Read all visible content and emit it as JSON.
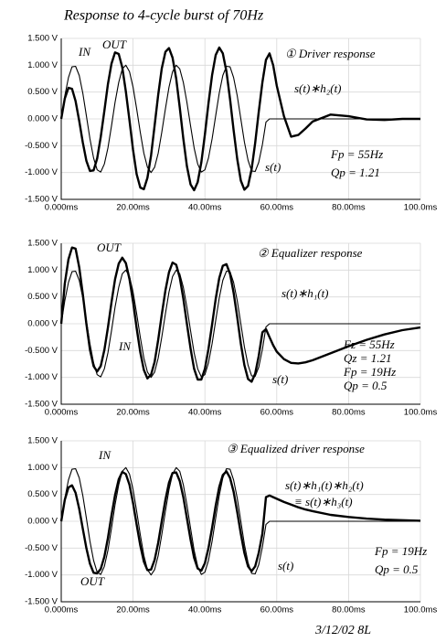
{
  "page_title": "Response to 4-cycle burst of 70Hz",
  "signature": "3/12/02 8L",
  "chart_data": [
    {
      "type": "line",
      "x": [
        0,
        1,
        2,
        3,
        4,
        5,
        6,
        7,
        8,
        9,
        10,
        11,
        12,
        13,
        14,
        15,
        16,
        17,
        18,
        19,
        20,
        21,
        22,
        23,
        24,
        25,
        26,
        27,
        28,
        29,
        30,
        31,
        32,
        33,
        34,
        35,
        36,
        37,
        38,
        39,
        40,
        41,
        42,
        43,
        44,
        45,
        46,
        47,
        48,
        49,
        50,
        51,
        52,
        53,
        54,
        55,
        56,
        57,
        58,
        59,
        60,
        62,
        64,
        66,
        68,
        70,
        75,
        80,
        85,
        90,
        95,
        100
      ],
      "series": [
        {
          "name": "IN",
          "color": "#000000",
          "values": [
            0,
            0.43,
            0.77,
            0.97,
            0.98,
            0.81,
            0.48,
            0.06,
            -0.37,
            -0.73,
            -0.95,
            -0.99,
            -0.84,
            -0.54,
            -0.13,
            0.31,
            0.68,
            0.93,
            1,
            0.88,
            0.59,
            0.19,
            -0.25,
            -0.64,
            -0.9,
            -1,
            -0.9,
            -0.64,
            -0.25,
            0.19,
            0.59,
            0.88,
            1,
            0.93,
            0.68,
            0.31,
            -0.13,
            -0.54,
            -0.84,
            -0.99,
            -0.95,
            -0.73,
            -0.37,
            0.06,
            0.48,
            0.81,
            0.98,
            0.97,
            0.77,
            0.43,
            0,
            -0.43,
            -0.77,
            -0.97,
            -0.98,
            -0.81,
            -0.48,
            -0.06,
            0,
            0,
            0,
            0,
            0,
            0,
            0,
            0,
            0,
            0,
            0,
            0,
            0,
            0
          ]
        },
        {
          "name": "OUT",
          "color": "#000000",
          "values": [
            0,
            0.38,
            0.58,
            0.56,
            0.33,
            -0.04,
            -0.44,
            -0.78,
            -0.97,
            -0.96,
            -0.74,
            -0.34,
            0.15,
            0.65,
            1.03,
            1.24,
            1.21,
            0.96,
            0.51,
            -0.03,
            -0.58,
            -1.03,
            -1.28,
            -1.31,
            -1.1,
            -0.68,
            -0.12,
            0.45,
            0.94,
            1.25,
            1.32,
            1.14,
            0.75,
            0.21,
            -0.37,
            -0.88,
            -1.22,
            -1.33,
            -1.18,
            -0.81,
            -0.29,
            0.29,
            0.82,
            1.19,
            1.33,
            1.22,
            0.88,
            0.37,
            -0.21,
            -0.75,
            -1.15,
            -1.32,
            -1.25,
            -0.94,
            -0.45,
            0.13,
            0.68,
            1.1,
            1.22,
            1.0,
            0.62,
            0.05,
            -0.33,
            -0.3,
            -0.18,
            -0.05,
            0.08,
            0.05,
            -0.01,
            -0.02,
            0,
            0
          ]
        }
      ],
      "annotations": [
        "① Driver response",
        "s(t)∗h₂(t)",
        "s(t)",
        "Fp = 55Hz",
        "Qp = 1.21"
      ],
      "xlim": [
        0,
        100
      ],
      "xticks": [
        {
          "value": 0,
          "label": "0.000ms"
        },
        {
          "value": 20,
          "label": "20.00ms"
        },
        {
          "value": 40,
          "label": "40.00ms"
        },
        {
          "value": 60,
          "label": "60.00ms"
        },
        {
          "value": 80,
          "label": "80.00ms"
        },
        {
          "value": 100,
          "label": "100.0ms"
        }
      ],
      "ylim": [
        -1.5,
        1.5
      ],
      "yticks": [
        {
          "value": 1.5,
          "label": "1.500 V"
        },
        {
          "value": 1,
          "label": "1.000 V"
        },
        {
          "value": 0.5,
          "label": "0.500 V"
        },
        {
          "value": 0,
          "label": "0.000 V"
        },
        {
          "value": -0.5,
          "label": "-0.500 V"
        },
        {
          "value": -1,
          "label": "-1.000 V"
        },
        {
          "value": -1.5,
          "label": "-1.500 V"
        }
      ],
      "grid": true
    },
    {
      "type": "line",
      "x": [
        0,
        1,
        2,
        3,
        4,
        5,
        6,
        7,
        8,
        9,
        10,
        11,
        12,
        13,
        14,
        15,
        16,
        17,
        18,
        19,
        20,
        21,
        22,
        23,
        24,
        25,
        26,
        27,
        28,
        29,
        30,
        31,
        32,
        33,
        34,
        35,
        36,
        37,
        38,
        39,
        40,
        41,
        42,
        43,
        44,
        45,
        46,
        47,
        48,
        49,
        50,
        51,
        52,
        53,
        54,
        55,
        56,
        57,
        58,
        59,
        60,
        62,
        64,
        66,
        68,
        70,
        75,
        80,
        85,
        90,
        95,
        100
      ],
      "series": [
        {
          "name": "IN",
          "color": "#000000",
          "values": [
            0,
            0.43,
            0.77,
            0.97,
            0.98,
            0.81,
            0.48,
            0.06,
            -0.37,
            -0.73,
            -0.95,
            -0.99,
            -0.84,
            -0.54,
            -0.13,
            0.31,
            0.68,
            0.93,
            1,
            0.88,
            0.59,
            0.19,
            -0.25,
            -0.64,
            -0.9,
            -1,
            -0.9,
            -0.64,
            -0.25,
            0.19,
            0.59,
            0.88,
            1,
            0.93,
            0.68,
            0.31,
            -0.13,
            -0.54,
            -0.84,
            -0.99,
            -0.95,
            -0.73,
            -0.37,
            0.06,
            0.48,
            0.81,
            0.98,
            0.97,
            0.77,
            0.43,
            0,
            -0.43,
            -0.77,
            -0.97,
            -0.98,
            -0.81,
            -0.48,
            -0.06,
            0,
            0,
            0,
            0,
            0,
            0,
            0,
            0,
            0,
            0,
            0,
            0,
            0,
            0
          ]
        },
        {
          "name": "OUT",
          "color": "#000000",
          "values": [
            0,
            0.75,
            1.2,
            1.42,
            1.4,
            1.05,
            0.55,
            0,
            -0.48,
            -0.79,
            -0.89,
            -0.79,
            -0.49,
            -0.07,
            0.4,
            0.83,
            1.12,
            1.23,
            1.13,
            0.83,
            0.41,
            -0.08,
            -0.53,
            -0.86,
            -1.02,
            -0.95,
            -0.71,
            -0.3,
            0.17,
            0.62,
            0.96,
            1.14,
            1.1,
            0.86,
            0.47,
            0,
            -0.46,
            -0.84,
            -1.04,
            -1.04,
            -0.84,
            -0.47,
            -0.01,
            0.46,
            0.85,
            1.08,
            1.11,
            0.93,
            0.58,
            0.12,
            -0.37,
            -0.77,
            -1.03,
            -1.08,
            -0.93,
            -0.6,
            -0.16,
            -0.1,
            -0.25,
            -0.4,
            -0.52,
            -0.66,
            -0.73,
            -0.74,
            -0.72,
            -0.68,
            -0.55,
            -0.42,
            -0.3,
            -0.2,
            -0.12,
            -0.07
          ]
        }
      ],
      "annotations": [
        "② Equalizer response",
        "s(t)∗h₁(t)",
        "s(t)",
        "Fz = 55Hz",
        "Qz = 1.21",
        "Fp = 19Hz",
        "Qp = 0.5"
      ],
      "xlim": [
        0,
        100
      ],
      "xticks": [
        {
          "value": 0,
          "label": "0.000ms"
        },
        {
          "value": 20,
          "label": "20.00ms"
        },
        {
          "value": 40,
          "label": "40.00ms"
        },
        {
          "value": 60,
          "label": "60.00ms"
        },
        {
          "value": 80,
          "label": "80.00ms"
        },
        {
          "value": 100,
          "label": "100.0ms"
        }
      ],
      "ylim": [
        -1.5,
        1.5
      ],
      "yticks": [
        {
          "value": 1.5,
          "label": "1.500 V"
        },
        {
          "value": 1,
          "label": "1.000 V"
        },
        {
          "value": 0.5,
          "label": "0.500 V"
        },
        {
          "value": 0,
          "label": "0.000 V"
        },
        {
          "value": -0.5,
          "label": "-0.500 V"
        },
        {
          "value": -1,
          "label": "-1.000 V"
        },
        {
          "value": -1.5,
          "label": "-1.500 V"
        }
      ],
      "grid": true
    },
    {
      "type": "line",
      "x": [
        0,
        1,
        2,
        3,
        4,
        5,
        6,
        7,
        8,
        9,
        10,
        11,
        12,
        13,
        14,
        15,
        16,
        17,
        18,
        19,
        20,
        21,
        22,
        23,
        24,
        25,
        26,
        27,
        28,
        29,
        30,
        31,
        32,
        33,
        34,
        35,
        36,
        37,
        38,
        39,
        40,
        41,
        42,
        43,
        44,
        45,
        46,
        47,
        48,
        49,
        50,
        51,
        52,
        53,
        54,
        55,
        56,
        57,
        58,
        59,
        60,
        62,
        64,
        66,
        68,
        70,
        75,
        80,
        85,
        90,
        95,
        100
      ],
      "series": [
        {
          "name": "IN",
          "color": "#000000",
          "values": [
            0,
            0.43,
            0.77,
            0.97,
            0.98,
            0.81,
            0.48,
            0.06,
            -0.37,
            -0.73,
            -0.95,
            -0.99,
            -0.84,
            -0.54,
            -0.13,
            0.31,
            0.68,
            0.93,
            1,
            0.88,
            0.59,
            0.19,
            -0.25,
            -0.64,
            -0.9,
            -1,
            -0.9,
            -0.64,
            -0.25,
            0.19,
            0.59,
            0.88,
            1,
            0.93,
            0.68,
            0.31,
            -0.13,
            -0.54,
            -0.84,
            -0.99,
            -0.95,
            -0.73,
            -0.37,
            0.06,
            0.48,
            0.81,
            0.98,
            0.97,
            0.77,
            0.43,
            0,
            -0.43,
            -0.77,
            -0.97,
            -0.98,
            -0.81,
            -0.48,
            -0.06,
            0,
            0,
            0,
            0,
            0,
            0,
            0,
            0,
            0,
            0,
            0,
            0,
            0,
            0
          ]
        },
        {
          "name": "OUT",
          "color": "#000000",
          "values": [
            0,
            0.4,
            0.63,
            0.67,
            0.53,
            0.23,
            -0.14,
            -0.5,
            -0.79,
            -0.96,
            -0.97,
            -0.89,
            -0.66,
            -0.31,
            0.11,
            0.49,
            0.78,
            0.92,
            0.88,
            0.68,
            0.34,
            -0.06,
            -0.45,
            -0.75,
            -0.91,
            -0.9,
            -0.72,
            -0.4,
            0,
            0.4,
            0.72,
            0.9,
            0.91,
            0.75,
            0.45,
            0.06,
            -0.34,
            -0.68,
            -0.88,
            -0.92,
            -0.78,
            -0.5,
            -0.12,
            0.29,
            0.64,
            0.86,
            0.93,
            0.81,
            0.55,
            0.17,
            -0.23,
            -0.59,
            -0.84,
            -0.93,
            -0.84,
            -0.59,
            -0.23,
            0.45,
            0.48,
            0.45,
            0.42,
            0.36,
            0.31,
            0.26,
            0.22,
            0.19,
            0.12,
            0.08,
            0.05,
            0.03,
            0.02,
            0.01
          ]
        }
      ],
      "annotations": [
        "③ Equalized driver response",
        "s(t)∗h₁(t)∗h₂(t)",
        "≡ s(t)∗h₃(t)",
        "s(t)",
        "Fp = 19Hz",
        "Qp = 0.5"
      ],
      "xlim": [
        0,
        100
      ],
      "xticks": [
        {
          "value": 0,
          "label": "0.000ms"
        },
        {
          "value": 20,
          "label": "20.00ms"
        },
        {
          "value": 40,
          "label": "40.00ms"
        },
        {
          "value": 60,
          "label": "60.00ms"
        },
        {
          "value": 80,
          "label": "80.00ms"
        },
        {
          "value": 100,
          "label": "100.0ms"
        }
      ],
      "ylim": [
        -1.5,
        1.5
      ],
      "yticks": [
        {
          "value": 1.5,
          "label": "1.500 V"
        },
        {
          "value": 1,
          "label": "1.000 V"
        },
        {
          "value": 0.5,
          "label": "0.500 V"
        },
        {
          "value": 0,
          "label": "0.000 V"
        },
        {
          "value": -0.5,
          "label": "-0.500 V"
        },
        {
          "value": -1,
          "label": "-1.000 V"
        },
        {
          "value": -1.5,
          "label": "-1.500 V"
        }
      ],
      "grid": true
    }
  ]
}
